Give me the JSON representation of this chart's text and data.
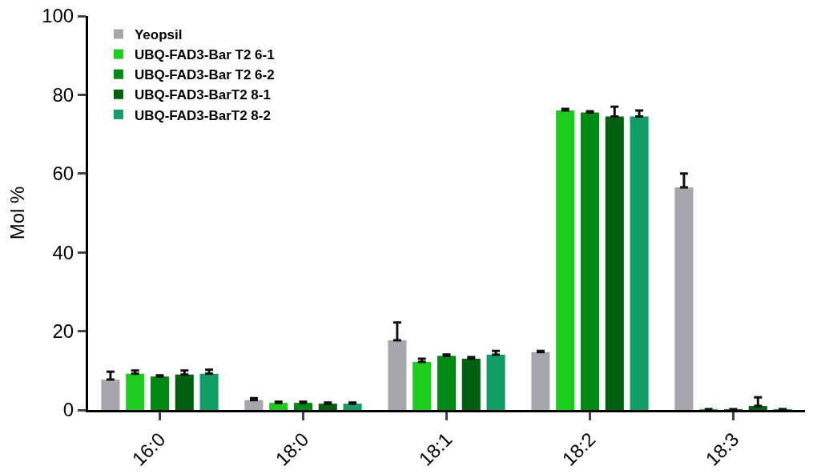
{
  "chart_data": {
    "type": "bar",
    "ylabel": "Mol %",
    "categories": [
      "16:0",
      "18:0",
      "18:1",
      "18:2",
      "18:3"
    ],
    "ylim": [
      0,
      100
    ],
    "yticks": [
      0,
      20,
      40,
      60,
      80,
      100
    ],
    "grid": false,
    "legend": "top left",
    "series": [
      {
        "name": "Yeopsil",
        "color": "#a6a6ac",
        "values": [
          7.7,
          2.5,
          17.7,
          14.7,
          56.5
        ],
        "errors": [
          [
            7.7,
            9.7
          ],
          [
            2.5,
            3.0
          ],
          [
            17.7,
            22.2
          ],
          [
            14.7,
            15.0
          ],
          [
            56.5,
            60.0
          ]
        ]
      },
      {
        "name": "UBQ-FAD3-Bar T2 6-1",
        "color": "#1ccc1c",
        "values": [
          9.2,
          1.8,
          12.2,
          76.0,
          0.2
        ],
        "errors": [
          [
            9.2,
            10.0
          ],
          [
            1.8,
            2.1
          ],
          [
            12.2,
            13.0
          ],
          [
            76.0,
            76.4
          ],
          null
        ]
      },
      {
        "name": "UBQ-FAD3-Bar T2 6-2",
        "color": "#008a14",
        "values": [
          8.5,
          1.8,
          13.7,
          75.5,
          0.2
        ],
        "errors": [
          [
            8.5,
            8.8
          ],
          [
            1.8,
            2.1
          ],
          [
            13.7,
            14.1
          ],
          [
            75.5,
            75.8
          ],
          null
        ]
      },
      {
        "name": "UBQ-FAD3-BarT2 8-1",
        "color": "#006010",
        "values": [
          9.0,
          1.6,
          13.0,
          74.5,
          1.0
        ],
        "errors": [
          [
            9.0,
            10.0
          ],
          [
            1.6,
            1.9
          ],
          [
            13.0,
            13.4
          ],
          [
            74.5,
            77.0
          ],
          [
            1.0,
            3.2
          ]
        ]
      },
      {
        "name": "UBQ-FAD3-BarT2 8-2",
        "color": "#109e66",
        "values": [
          9.2,
          1.6,
          14.0,
          74.5,
          0.2
        ],
        "errors": [
          [
            9.2,
            10.2
          ],
          [
            1.6,
            1.9
          ],
          [
            14.0,
            15.0
          ],
          [
            74.5,
            76.0
          ],
          null
        ]
      }
    ]
  }
}
